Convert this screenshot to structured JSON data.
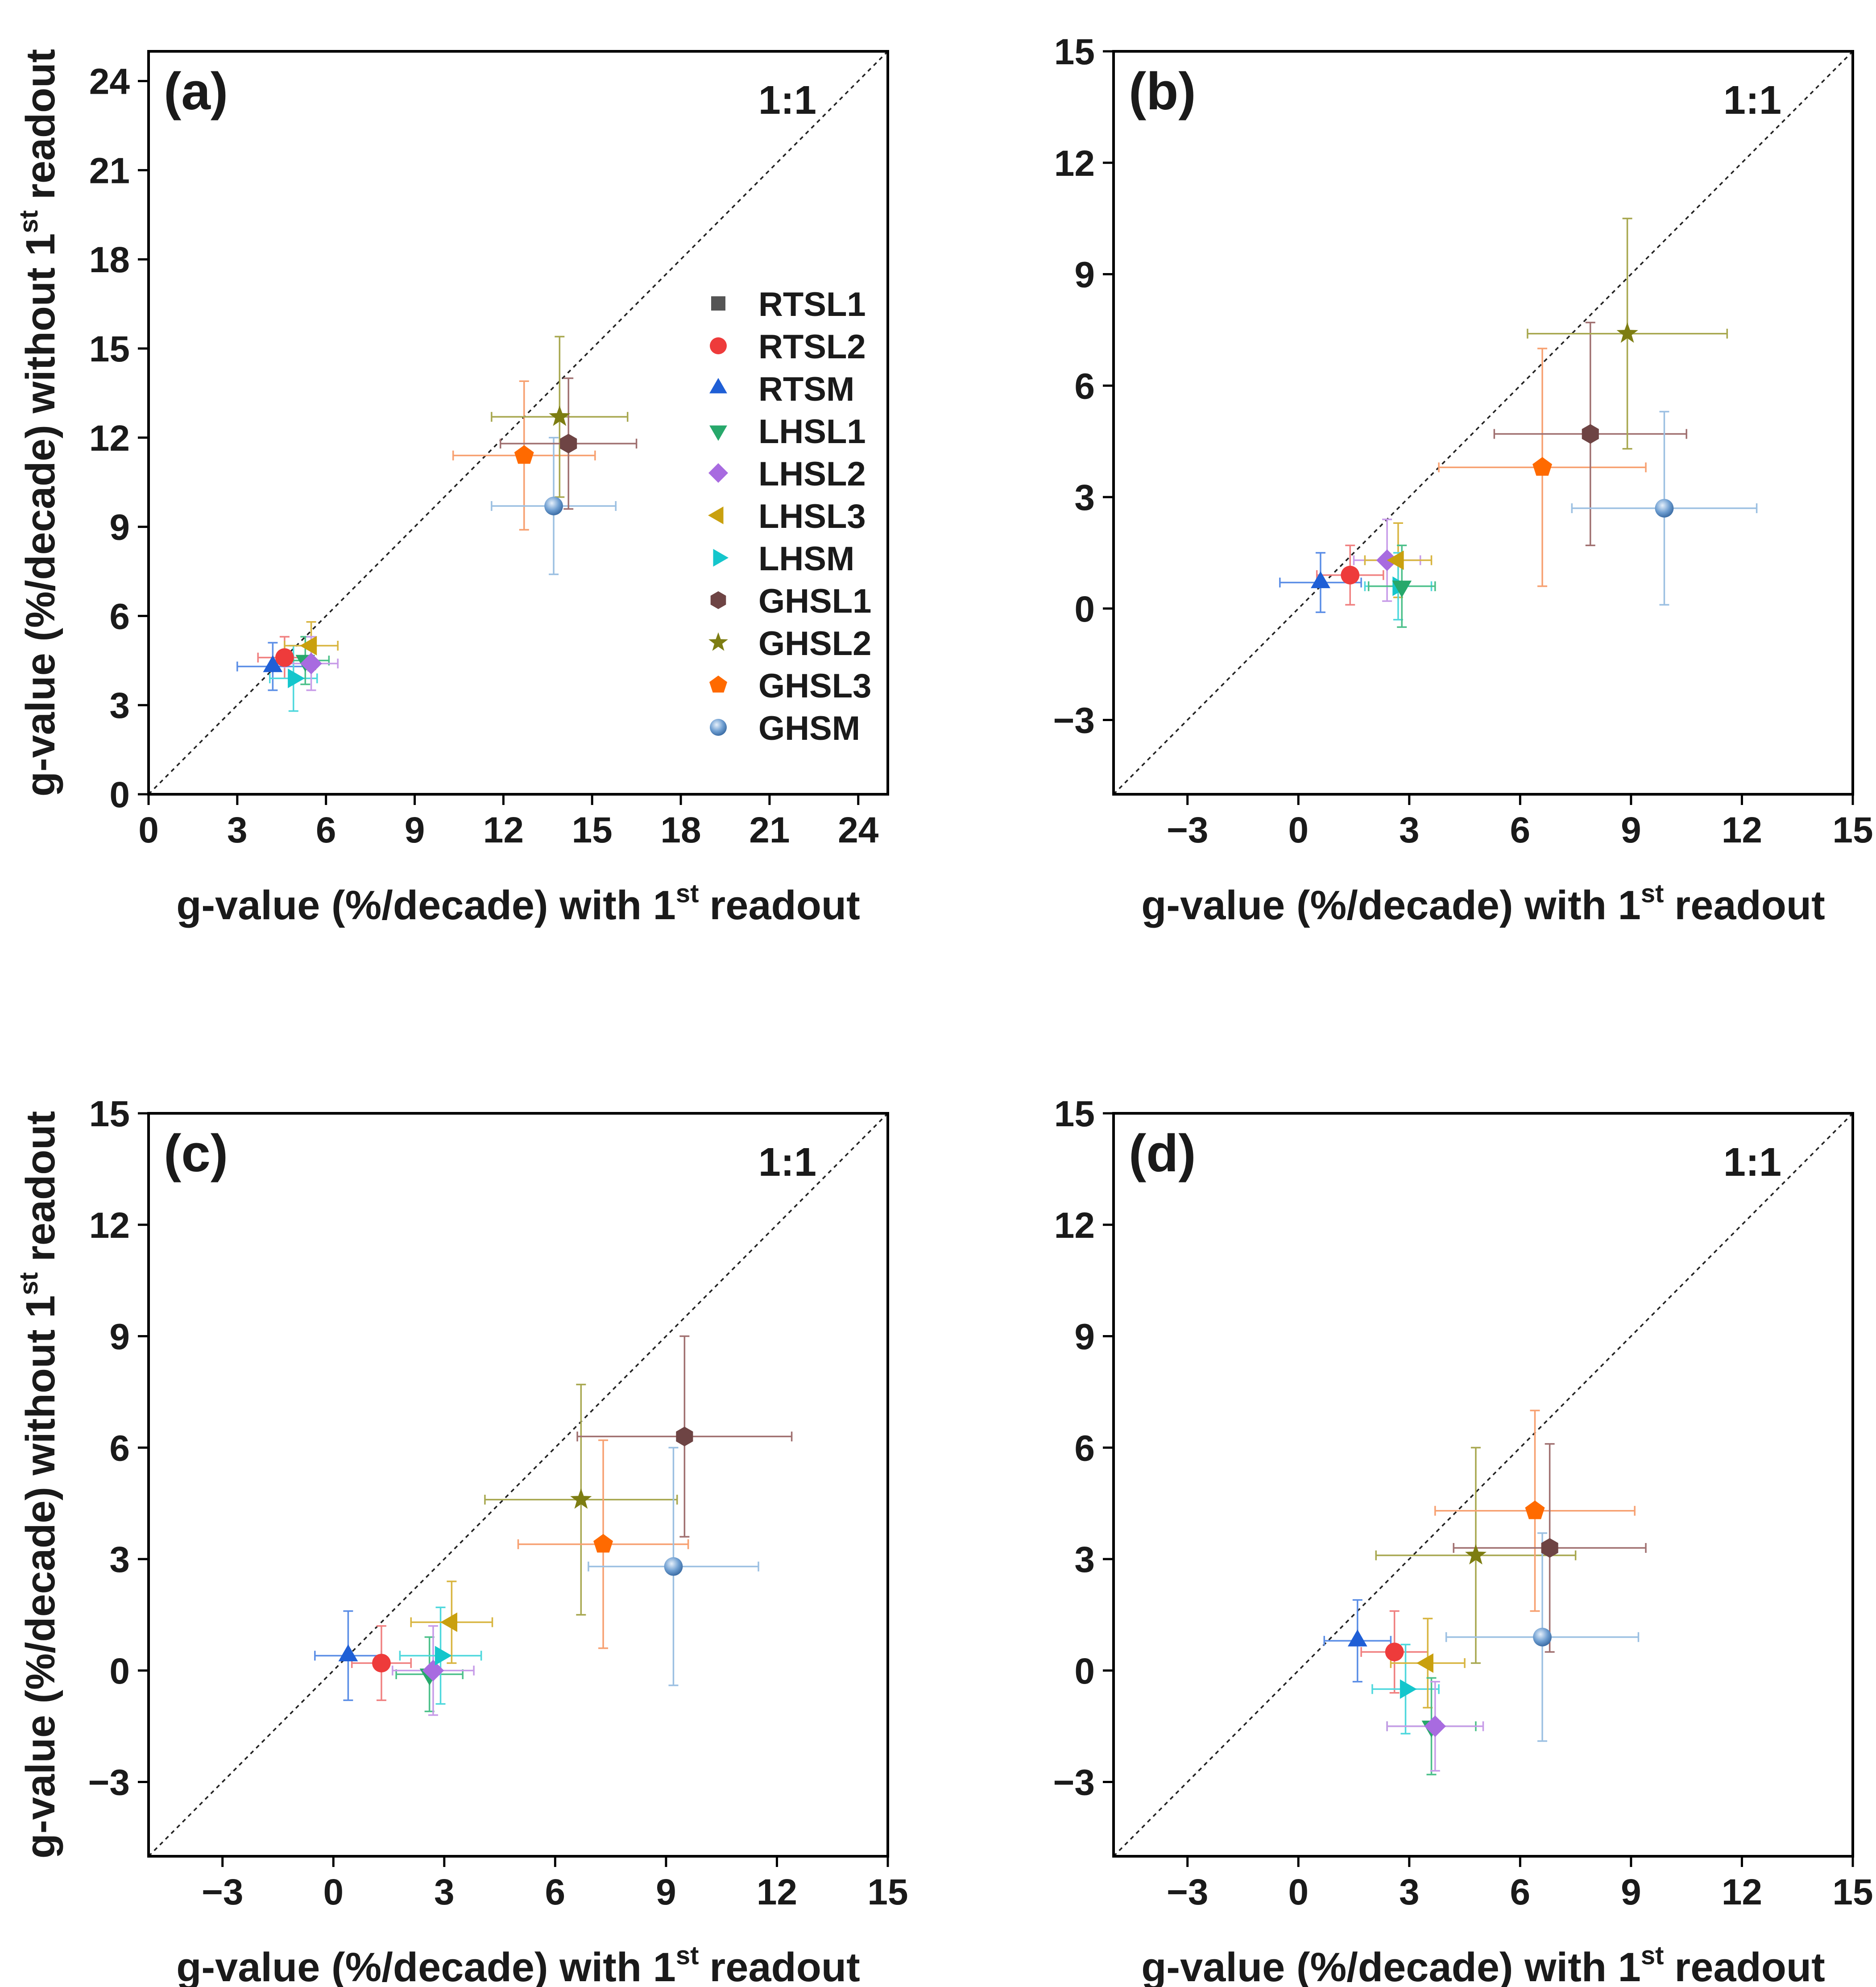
{
  "chart_data": [
    {
      "panel": "(a)",
      "type": "scatter",
      "annotation": "1:1",
      "xlabel": "g-value (%/decade) with 1st readout",
      "xlabel_main": "g-value (%/decade) with 1",
      "xlabel_sup": "st",
      "xlabel_tail": "readout",
      "ylabel": "g-value (%/decade) without 1st readout",
      "ylabel_main": "g-value (%/decade) without 1",
      "ylabel_sup": "st",
      "ylabel_tail": "readout",
      "xlim": [
        0,
        25
      ],
      "ylim": [
        0,
        25
      ],
      "xticks": [
        0,
        3,
        6,
        9,
        12,
        15,
        18,
        21,
        24
      ],
      "yticks": [
        0,
        3,
        6,
        9,
        12,
        15,
        18,
        21,
        24
      ],
      "diagonal": true,
      "legend": "right",
      "points": [
        {
          "name": "RTSM",
          "x": 4.2,
          "y": 4.3,
          "xerr": 1.2,
          "yerr": 0.8
        },
        {
          "name": "RTSL2",
          "x": 4.6,
          "y": 4.6,
          "xerr": 0.9,
          "yerr": 0.7
        },
        {
          "name": "LHSM",
          "x": 4.9,
          "y": 3.9,
          "xerr": 0.8,
          "yerr": 1.1
        },
        {
          "name": "LHSL1",
          "x": 5.3,
          "y": 4.5,
          "xerr": 0.8,
          "yerr": 0.8
        },
        {
          "name": "LHSL3",
          "x": 5.5,
          "y": 5.0,
          "xerr": 0.9,
          "yerr": 0.8
        },
        {
          "name": "LHSL2",
          "x": 5.5,
          "y": 4.4,
          "xerr": 0.9,
          "yerr": 0.9
        },
        {
          "name": "GHSL3",
          "x": 12.7,
          "y": 11.4,
          "xerr": 2.4,
          "yerr": 2.5
        },
        {
          "name": "GHSM",
          "x": 13.7,
          "y": 9.7,
          "xerr": 2.1,
          "yerr": 2.3
        },
        {
          "name": "GHSL2",
          "x": 13.9,
          "y": 12.7,
          "xerr": 2.3,
          "yerr": 2.7
        },
        {
          "name": "GHSL1",
          "x": 14.2,
          "y": 11.8,
          "xerr": 2.3,
          "yerr": 2.2
        }
      ]
    },
    {
      "panel": "(b)",
      "type": "scatter",
      "annotation": "1:1",
      "xlabel": "g-value (%/decade) with 1st readout",
      "xlabel_main": "g-value (%/decade) with 1",
      "xlabel_sup": "st",
      "xlabel_tail": "readout",
      "ylabel": "",
      "xlim": [
        -5,
        15
      ],
      "ylim": [
        -5,
        15
      ],
      "xticks": [
        -3,
        0,
        3,
        6,
        9,
        12,
        15
      ],
      "yticks": [
        -3,
        0,
        3,
        6,
        9,
        12,
        15
      ],
      "diagonal": true,
      "points": [
        {
          "name": "RTSM",
          "x": 0.6,
          "y": 0.7,
          "xerr": 1.1,
          "yerr": 0.8
        },
        {
          "name": "RTSL2",
          "x": 1.4,
          "y": 0.9,
          "xerr": 0.9,
          "yerr": 0.8
        },
        {
          "name": "LHSL2",
          "x": 2.4,
          "y": 1.3,
          "xerr": 0.9,
          "yerr": 1.1
        },
        {
          "name": "LHSL3",
          "x": 2.7,
          "y": 1.3,
          "xerr": 0.9,
          "yerr": 1.0
        },
        {
          "name": "LHSM",
          "x": 2.7,
          "y": 0.6,
          "xerr": 0.9,
          "yerr": 0.9
        },
        {
          "name": "LHSL1",
          "x": 2.8,
          "y": 0.6,
          "xerr": 0.9,
          "yerr": 1.1
        },
        {
          "name": "GHSL3",
          "x": 6.6,
          "y": 3.8,
          "xerr": 2.8,
          "yerr": 3.2
        },
        {
          "name": "GHSL1",
          "x": 7.9,
          "y": 4.7,
          "xerr": 2.6,
          "yerr": 3.0
        },
        {
          "name": "GHSL2",
          "x": 8.9,
          "y": 7.4,
          "xerr": 2.7,
          "yerr": 3.1
        },
        {
          "name": "GHSM",
          "x": 9.9,
          "y": 2.7,
          "xerr": 2.5,
          "yerr": 2.6
        }
      ]
    },
    {
      "panel": "(c)",
      "type": "scatter",
      "annotation": "1:1",
      "xlabel": "g-value (%/decade) with 1st readout",
      "xlabel_main": "g-value (%/decade) with 1",
      "xlabel_sup": "st",
      "xlabel_tail": "readout",
      "ylabel": "g-value (%/decade) without 1st readout",
      "ylabel_main": "g-value (%/decade) without 1",
      "ylabel_sup": "st",
      "ylabel_tail": "readout",
      "xlim": [
        -5,
        15
      ],
      "ylim": [
        -5,
        15
      ],
      "xticks": [
        -3,
        0,
        3,
        6,
        9,
        12,
        15
      ],
      "yticks": [
        -3,
        0,
        3,
        6,
        9,
        12,
        15
      ],
      "diagonal": true,
      "points": [
        {
          "name": "RTSM",
          "x": 0.4,
          "y": 0.4,
          "xerr": 0.9,
          "yerr": 1.2
        },
        {
          "name": "RTSL2",
          "x": 1.3,
          "y": 0.2,
          "xerr": 0.8,
          "yerr": 1.0
        },
        {
          "name": "LHSL1",
          "x": 2.6,
          "y": -0.1,
          "xerr": 0.9,
          "yerr": 1.0
        },
        {
          "name": "LHSL2",
          "x": 2.7,
          "y": 0.0,
          "xerr": 1.1,
          "yerr": 1.2
        },
        {
          "name": "LHSM",
          "x": 2.9,
          "y": 0.4,
          "xerr": 1.1,
          "yerr": 1.3
        },
        {
          "name": "LHSL3",
          "x": 3.2,
          "y": 1.3,
          "xerr": 1.1,
          "yerr": 1.1
        },
        {
          "name": "GHSL2",
          "x": 6.7,
          "y": 4.6,
          "xerr": 2.6,
          "yerr": 3.1
        },
        {
          "name": "GHSL3",
          "x": 7.3,
          "y": 3.4,
          "xerr": 2.3,
          "yerr": 2.8
        },
        {
          "name": "GHSM",
          "x": 9.2,
          "y": 2.8,
          "xerr": 2.3,
          "yerr": 3.2
        },
        {
          "name": "GHSL1",
          "x": 9.5,
          "y": 6.3,
          "xerr": 2.9,
          "yerr": 2.7
        }
      ]
    },
    {
      "panel": "(d)",
      "type": "scatter",
      "annotation": "1:1",
      "xlabel": "g-value (%/decade) with 1st readout",
      "xlabel_main": "g-value (%/decade) with 1",
      "xlabel_sup": "st",
      "xlabel_tail": "readout",
      "ylabel": "",
      "xlim": [
        -5,
        15
      ],
      "ylim": [
        -5,
        15
      ],
      "xticks": [
        -3,
        0,
        3,
        6,
        9,
        12,
        15
      ],
      "yticks": [
        -3,
        0,
        3,
        6,
        9,
        12,
        15
      ],
      "diagonal": true,
      "points": [
        {
          "name": "RTSM",
          "x": 1.6,
          "y": 0.8,
          "xerr": 0.9,
          "yerr": 1.1
        },
        {
          "name": "RTSL2",
          "x": 2.6,
          "y": 0.5,
          "xerr": 0.9,
          "yerr": 1.1
        },
        {
          "name": "LHSM",
          "x": 2.9,
          "y": -0.5,
          "xerr": 0.9,
          "yerr": 1.2
        },
        {
          "name": "LHSL3",
          "x": 3.5,
          "y": 0.2,
          "xerr": 1.0,
          "yerr": 1.2
        },
        {
          "name": "LHSL1",
          "x": 3.6,
          "y": -1.5,
          "xerr": 1.2,
          "yerr": 1.3
        },
        {
          "name": "LHSL2",
          "x": 3.7,
          "y": -1.5,
          "xerr": 1.3,
          "yerr": 1.2
        },
        {
          "name": "GHSL2",
          "x": 4.8,
          "y": 3.1,
          "xerr": 2.7,
          "yerr": 2.9
        },
        {
          "name": "GHSL3",
          "x": 6.4,
          "y": 4.3,
          "xerr": 2.7,
          "yerr": 2.7
        },
        {
          "name": "GHSM",
          "x": 6.6,
          "y": 0.9,
          "xerr": 2.6,
          "yerr": 2.8
        },
        {
          "name": "GHSL1",
          "x": 6.8,
          "y": 3.3,
          "xerr": 2.6,
          "yerr": 2.8
        }
      ]
    }
  ],
  "legend": [
    {
      "name": "RTSL1",
      "marker": "square",
      "color": "#555555"
    },
    {
      "name": "RTSL2",
      "marker": "circle",
      "color": "#ee3b3b"
    },
    {
      "name": "RTSM",
      "marker": "triangle-up",
      "color": "#1f5fd6"
    },
    {
      "name": "LHSL1",
      "marker": "triangle-down",
      "color": "#27a86b"
    },
    {
      "name": "LHSL2",
      "marker": "diamond",
      "color": "#a86be0"
    },
    {
      "name": "LHSL3",
      "marker": "triangle-left",
      "color": "#c9a00e"
    },
    {
      "name": "LHSM",
      "marker": "triangle-right",
      "color": "#14c6cc"
    },
    {
      "name": "GHSL1",
      "marker": "hexagon",
      "color": "#6e4444"
    },
    {
      "name": "GHSL2",
      "marker": "star",
      "color": "#7d7d12"
    },
    {
      "name": "GHSL3",
      "marker": "pentagon",
      "color": "#ff6a00"
    },
    {
      "name": "GHSM",
      "marker": "sphere",
      "color": "#6e9ed1"
    }
  ],
  "error_colors": {
    "RTSL1": "#888888",
    "RTSL2": "#f08080",
    "RTSM": "#5b8ee6",
    "LHSL1": "#4cc08a",
    "LHSL2": "#c79be8",
    "LHSL3": "#d8b540",
    "LHSM": "#4fd8dd",
    "GHSL1": "#a07070",
    "GHSL2": "#a8a850",
    "GHSL3": "#f7a070",
    "GHSM": "#9cc0e2"
  }
}
